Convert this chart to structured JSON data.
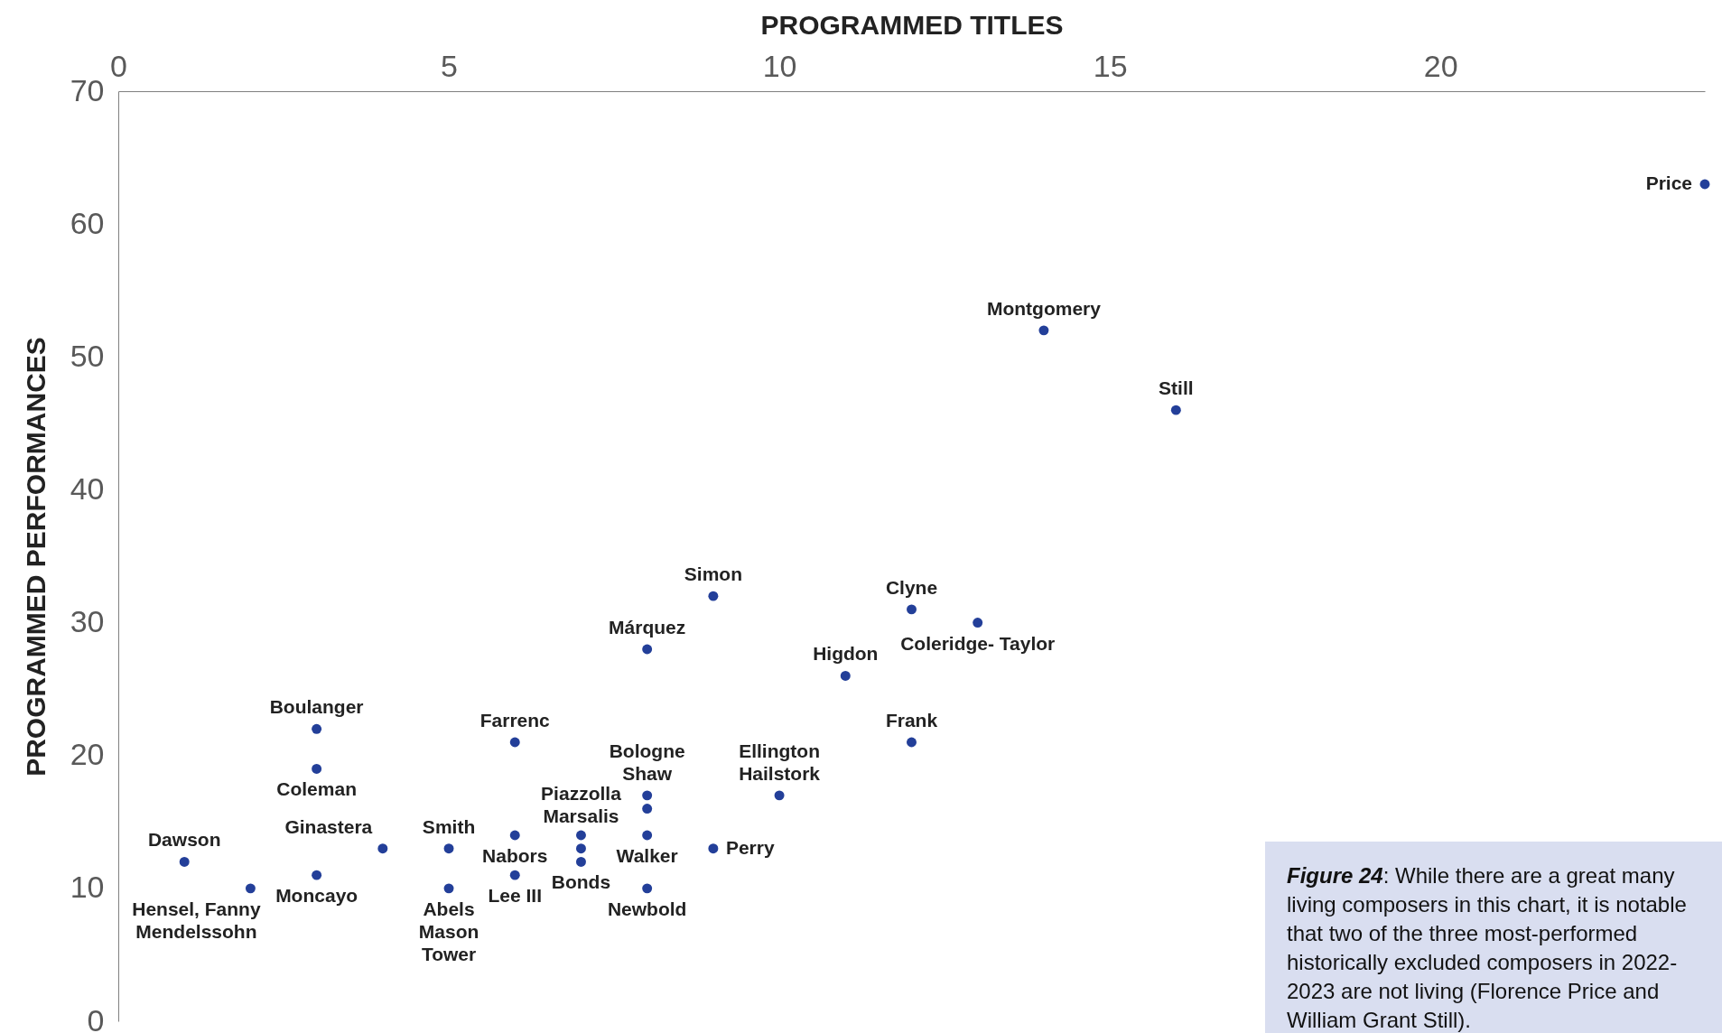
{
  "chart_data": {
    "type": "scatter",
    "xlabel": "PROGRAMMED TITLES",
    "ylabel": "PROGRAMMED PERFORMANCES",
    "color": "#233f99",
    "marker": "circle",
    "grid": false,
    "xlim": [
      0,
      24
    ],
    "ylim": [
      0,
      70
    ],
    "xticks": [
      0,
      5,
      10,
      15,
      20
    ],
    "yticks": [
      0,
      10,
      20,
      30,
      40,
      50,
      60,
      70
    ],
    "x": [
      24,
      14,
      16,
      9,
      12,
      13,
      8,
      11,
      12,
      3,
      3,
      6,
      10,
      8,
      8,
      7,
      7,
      7,
      8,
      9,
      6,
      6,
      8,
      5,
      5,
      4,
      3,
      1,
      2
    ],
    "values": [
      63,
      52,
      46,
      32,
      31,
      30,
      28,
      26,
      21,
      22,
      19,
      21,
      17,
      17,
      16,
      14,
      13,
      12,
      14,
      13,
      14,
      11,
      10,
      13,
      10,
      13,
      11,
      12,
      10
    ],
    "annotations": [
      {
        "text": "Price",
        "x": 24,
        "y": 63
      },
      {
        "text": "Montgomery",
        "x": 14,
        "y": 52
      },
      {
        "text": "Still",
        "x": 16,
        "y": 46
      },
      {
        "text": "Simon",
        "x": 9,
        "y": 32
      },
      {
        "text": "Clyne",
        "x": 12,
        "y": 31
      },
      {
        "text": "Coleridge- Taylor",
        "x": 13,
        "y": 30
      },
      {
        "text": "Márquez",
        "x": 8,
        "y": 28
      },
      {
        "text": "Higdon",
        "x": 11,
        "y": 26
      },
      {
        "text": "Frank",
        "x": 12,
        "y": 21
      },
      {
        "text": "Boulanger",
        "x": 3,
        "y": 22
      },
      {
        "text": "Coleman",
        "x": 3,
        "y": 19
      },
      {
        "text": "Farrenc",
        "x": 6,
        "y": 21
      },
      {
        "text": "Ellington\nHailstork",
        "x": 10,
        "y": 17
      },
      {
        "text": "Bologne\nShaw",
        "x": 8,
        "y": 17
      },
      {
        "text": "Piazzolla\nMarsalis",
        "x": 7,
        "y": 14
      },
      {
        "text": "Walker",
        "x": 8,
        "y": 14
      },
      {
        "text": "Perry",
        "x": 9,
        "y": 13
      },
      {
        "text": "Nabors",
        "x": 6,
        "y": 14
      },
      {
        "text": "Lee III",
        "x": 6,
        "y": 11
      },
      {
        "text": "Bonds",
        "x": 7,
        "y": 12
      },
      {
        "text": "Newbold",
        "x": 8,
        "y": 10
      },
      {
        "text": "Smith",
        "x": 5,
        "y": 13
      },
      {
        "text": "Abels\nMason\nTower",
        "x": 5,
        "y": 10
      },
      {
        "text": "Ginastera",
        "x": 4,
        "y": 13
      },
      {
        "text": "Moncayo",
        "x": 3,
        "y": 11
      },
      {
        "text": "Dawson",
        "x": 1,
        "y": 12
      },
      {
        "text": "Hensel, Fanny\nMendelssohn",
        "x": 2,
        "y": 10
      },
      "Figure 24: While there are a great many living composers in this chart, it is notable that two of the three most-performed historically excluded composers in 2022-2023 are not living (Florence Price and William Grant Still)."
    ]
  }
}
